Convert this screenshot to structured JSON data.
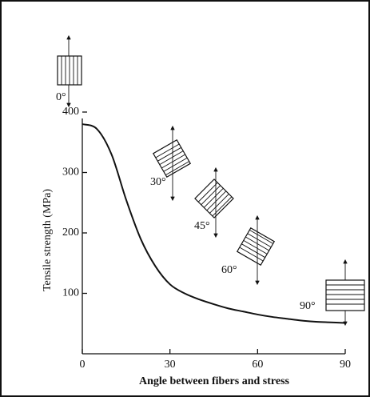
{
  "chart_data": {
    "type": "line",
    "x_label": "Angle between fibers and stress",
    "y_label": "Tensile strength (MPa)",
    "x": [
      0,
      5,
      10,
      15,
      20,
      25,
      30,
      35,
      40,
      45,
      50,
      55,
      60,
      65,
      70,
      75,
      80,
      85,
      90
    ],
    "series": [
      {
        "color": "#111111",
        "values": [
          380,
          372,
          330,
          255,
          190,
          145,
          115,
          100,
          90,
          82,
          75,
          70,
          65,
          61,
          58,
          55,
          53,
          52,
          51
        ]
      }
    ],
    "xlim": [
      0,
      90
    ],
    "xticks": [
      0,
      30,
      60,
      90
    ],
    "ylim": [
      0,
      400
    ],
    "yticks": [
      100,
      200,
      300,
      400
    ],
    "annotations": [
      "0°",
      "30°",
      "45°",
      "60°",
      "90°"
    ]
  }
}
